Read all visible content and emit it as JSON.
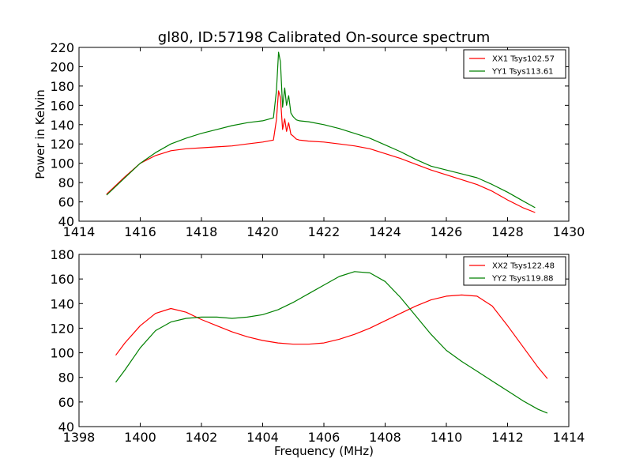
{
  "figure": {
    "title": "gl80, ID:57198 Calibrated On-source spectrum",
    "ylabel": "Power in Kelvin",
    "xlabel": "Frequency (MHz)"
  },
  "chart_data": [
    {
      "type": "line",
      "title": "gl80, ID:57198 Calibrated On-source spectrum",
      "xlabel": "",
      "ylabel": "Power in Kelvin",
      "xlim": [
        1414,
        1430
      ],
      "ylim": [
        40,
        220
      ],
      "xticks": [
        1414,
        1416,
        1418,
        1420,
        1422,
        1424,
        1426,
        1428,
        1430
      ],
      "yticks": [
        40,
        60,
        80,
        100,
        120,
        140,
        160,
        180,
        200,
        220
      ],
      "grid": false,
      "legend_position": "top-right",
      "series": [
        {
          "name": "XX1 Tsys102.57",
          "color": "#ff0000",
          "x": [
            1414.9,
            1415.5,
            1416.0,
            1416.5,
            1417.0,
            1417.5,
            1418.0,
            1418.5,
            1419.0,
            1419.5,
            1420.0,
            1420.35,
            1420.45,
            1420.52,
            1420.58,
            1420.65,
            1420.72,
            1420.78,
            1420.85,
            1420.92,
            1421.0,
            1421.1,
            1421.2,
            1421.5,
            1422.0,
            1422.5,
            1423.0,
            1423.5,
            1424.0,
            1424.5,
            1425.0,
            1425.5,
            1426.0,
            1426.5,
            1427.0,
            1427.5,
            1428.0,
            1428.5,
            1428.9
          ],
          "y": [
            68,
            86,
            100,
            108,
            113,
            115,
            116,
            117,
            118,
            120,
            122,
            124,
            145,
            175,
            168,
            135,
            146,
            133,
            142,
            130,
            128,
            125,
            124,
            123,
            122,
            120,
            118,
            115,
            110,
            105,
            99,
            93,
            88,
            83,
            78,
            71,
            62,
            54,
            49
          ]
        },
        {
          "name": "YY1 Tsys113.61",
          "color": "#008000",
          "x": [
            1414.9,
            1415.5,
            1416.0,
            1416.5,
            1417.0,
            1417.5,
            1418.0,
            1418.5,
            1419.0,
            1419.5,
            1420.0,
            1420.35,
            1420.45,
            1420.52,
            1420.58,
            1420.65,
            1420.72,
            1420.78,
            1420.85,
            1420.92,
            1421.0,
            1421.1,
            1421.2,
            1421.5,
            1422.0,
            1422.5,
            1423.0,
            1423.5,
            1424.0,
            1424.5,
            1425.0,
            1425.5,
            1426.0,
            1426.5,
            1427.0,
            1427.5,
            1428.0,
            1428.5,
            1428.9
          ],
          "y": [
            67,
            85,
            100,
            111,
            120,
            126,
            131,
            135,
            139,
            142,
            144,
            147,
            175,
            215,
            205,
            158,
            178,
            160,
            170,
            152,
            148,
            145,
            144,
            143,
            140,
            136,
            131,
            126,
            119,
            112,
            104,
            97,
            93,
            89,
            85,
            78,
            70,
            61,
            54
          ]
        }
      ]
    },
    {
      "type": "line",
      "title": "",
      "xlabel": "Frequency (MHz)",
      "ylabel": "",
      "xlim": [
        1398,
        1414
      ],
      "ylim": [
        40,
        180
      ],
      "xticks": [
        1398,
        1400,
        1402,
        1404,
        1406,
        1408,
        1410,
        1412,
        1414
      ],
      "yticks": [
        40,
        60,
        80,
        100,
        120,
        140,
        160,
        180
      ],
      "grid": false,
      "legend_position": "top-right",
      "series": [
        {
          "name": "XX2 Tsys122.48",
          "color": "#ff0000",
          "x": [
            1399.2,
            1399.5,
            1400.0,
            1400.5,
            1401.0,
            1401.5,
            1402.0,
            1402.5,
            1403.0,
            1403.5,
            1404.0,
            1404.5,
            1405.0,
            1405.5,
            1406.0,
            1406.5,
            1407.0,
            1407.5,
            1408.0,
            1408.5,
            1409.0,
            1409.5,
            1410.0,
            1410.5,
            1411.0,
            1411.5,
            1412.0,
            1412.5,
            1413.0,
            1413.3
          ],
          "y": [
            98,
            108,
            122,
            132,
            136,
            133,
            127,
            122,
            117,
            113,
            110,
            108,
            107,
            107,
            108,
            111,
            115,
            120,
            126,
            132,
            138,
            143,
            146,
            147,
            146,
            138,
            122,
            105,
            88,
            79
          ]
        },
        {
          "name": "YY2 Tsys119.88",
          "color": "#008000",
          "x": [
            1399.2,
            1399.5,
            1400.0,
            1400.5,
            1401.0,
            1401.5,
            1402.0,
            1402.5,
            1403.0,
            1403.5,
            1404.0,
            1404.5,
            1405.0,
            1405.5,
            1406.0,
            1406.5,
            1407.0,
            1407.5,
            1408.0,
            1408.5,
            1409.0,
            1409.5,
            1410.0,
            1410.5,
            1411.0,
            1411.5,
            1412.0,
            1412.5,
            1413.0,
            1413.3
          ],
          "y": [
            76,
            86,
            104,
            118,
            125,
            128,
            129,
            129,
            128,
            129,
            131,
            135,
            141,
            148,
            155,
            162,
            166,
            165,
            158,
            145,
            130,
            115,
            102,
            93,
            85,
            77,
            69,
            61,
            54,
            51
          ]
        }
      ]
    }
  ]
}
